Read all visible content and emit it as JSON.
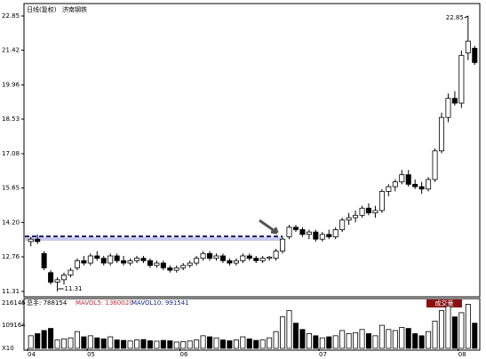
{
  "chart_data": {
    "type": "candlestick",
    "title": "日线(复权)",
    "subtitle": "济南钢铁",
    "up_color": "#ffffff",
    "down_color": "#000000",
    "categories": [
      "04",
      null,
      null,
      null,
      null,
      null,
      null,
      null,
      null,
      "05",
      null,
      null,
      null,
      null,
      null,
      null,
      null,
      null,
      null,
      null,
      null,
      null,
      null,
      "06",
      null,
      null,
      null,
      null,
      null,
      null,
      null,
      null,
      null,
      null,
      null,
      null,
      null,
      null,
      null,
      null,
      null,
      null,
      null,
      null,
      "07",
      null,
      null,
      null,
      null,
      null,
      null,
      null,
      null,
      null,
      null,
      null,
      null,
      null,
      null,
      null,
      null,
      null,
      null,
      null,
      null,
      "08",
      null,
      null
    ],
    "open": [
      13.4,
      13.5,
      12.9,
      12.1,
      11.7,
      11.8,
      12.0,
      12.3,
      12.6,
      12.5,
      12.8,
      12.7,
      12.5,
      12.8,
      12.6,
      12.5,
      12.6,
      12.7,
      12.6,
      12.4,
      12.5,
      12.3,
      12.2,
      12.3,
      12.4,
      12.5,
      12.7,
      12.9,
      12.7,
      12.8,
      12.6,
      12.5,
      12.6,
      12.8,
      12.7,
      12.6,
      12.7,
      12.7,
      13.0,
      13.6,
      14.0,
      13.9,
      13.7,
      13.8,
      13.5,
      13.7,
      13.6,
      13.9,
      14.3,
      14.4,
      14.5,
      14.8,
      14.6,
      14.7,
      15.5,
      15.7,
      15.9,
      16.2,
      15.8,
      15.7,
      15.6,
      16.0,
      17.2,
      18.6,
      19.4,
      19.2,
      21.3,
      21.5
    ],
    "high": [
      13.6,
      13.7,
      13.0,
      12.2,
      11.9,
      12.1,
      12.3,
      12.7,
      12.8,
      12.9,
      13.0,
      12.8,
      12.9,
      12.9,
      12.8,
      12.7,
      12.8,
      12.8,
      12.7,
      12.6,
      12.6,
      12.4,
      12.4,
      12.5,
      12.6,
      12.8,
      13.0,
      13.0,
      12.9,
      12.9,
      12.7,
      12.7,
      12.9,
      12.9,
      12.8,
      12.8,
      12.8,
      13.1,
      13.6,
      14.1,
      14.1,
      14.0,
      13.9,
      13.9,
      13.8,
      13.9,
      14.0,
      14.4,
      14.6,
      14.7,
      14.9,
      15.0,
      14.9,
      15.6,
      15.8,
      16.0,
      16.4,
      16.4,
      16.0,
      15.9,
      16.1,
      17.3,
      18.8,
      19.6,
      19.7,
      21.4,
      22.85,
      21.6
    ],
    "low": [
      13.2,
      13.3,
      12.2,
      11.6,
      11.31,
      11.6,
      11.9,
      12.2,
      12.4,
      12.4,
      12.6,
      12.4,
      12.4,
      12.5,
      12.4,
      12.4,
      12.5,
      12.5,
      12.3,
      12.3,
      12.2,
      12.1,
      12.1,
      12.2,
      12.3,
      12.4,
      12.6,
      12.6,
      12.6,
      12.5,
      12.4,
      12.4,
      12.5,
      12.6,
      12.5,
      12.5,
      12.6,
      12.6,
      12.9,
      13.5,
      13.8,
      13.6,
      13.5,
      13.4,
      13.4,
      13.5,
      13.5,
      13.8,
      14.1,
      14.2,
      14.4,
      14.5,
      14.4,
      14.6,
      15.3,
      15.5,
      15.8,
      15.7,
      15.6,
      15.4,
      15.5,
      15.9,
      17.1,
      18.4,
      19.1,
      19.0,
      21.0,
      20.8
    ],
    "close": [
      13.5,
      13.4,
      12.3,
      11.7,
      11.8,
      12.0,
      12.2,
      12.6,
      12.5,
      12.8,
      12.7,
      12.5,
      12.8,
      12.6,
      12.5,
      12.6,
      12.7,
      12.6,
      12.4,
      12.5,
      12.3,
      12.2,
      12.3,
      12.4,
      12.5,
      12.7,
      12.9,
      12.7,
      12.8,
      12.6,
      12.5,
      12.6,
      12.8,
      12.7,
      12.6,
      12.7,
      12.75,
      13.0,
      13.5,
      14.0,
      13.9,
      13.7,
      13.8,
      13.5,
      13.7,
      13.6,
      13.9,
      14.3,
      14.4,
      14.5,
      14.8,
      14.6,
      14.7,
      15.5,
      15.7,
      15.9,
      16.2,
      15.8,
      15.7,
      15.6,
      16.0,
      17.2,
      18.6,
      19.4,
      19.2,
      21.2,
      21.8,
      20.9
    ],
    "volume": [
      60000,
      70000,
      85000,
      95000,
      40000,
      45000,
      50000,
      80000,
      55000,
      60000,
      50000,
      45000,
      55000,
      40000,
      38000,
      35000,
      40000,
      42000,
      36000,
      34000,
      38000,
      36000,
      30000,
      32000,
      35000,
      40000,
      60000,
      55000,
      50000,
      40000,
      36000,
      40000,
      55000,
      45000,
      38000,
      40000,
      50000,
      80000,
      150000,
      180000,
      120000,
      90000,
      70000,
      60000,
      50000,
      55000,
      60000,
      85000,
      70000,
      75000,
      90000,
      70000,
      60000,
      110000,
      90000,
      85000,
      100000,
      95000,
      70000,
      60000,
      80000,
      130000,
      180000,
      200000,
      150000,
      170000,
      210000,
      120000
    ],
    "ylim": [
      11.31,
      22.85
    ],
    "yticks": [
      {
        "value": 11.31,
        "label": "11.31"
      },
      {
        "value": 12.76,
        "label": "12.76"
      },
      {
        "value": 14.2,
        "label": "14.20"
      },
      {
        "value": 15.65,
        "label": "15.65"
      },
      {
        "value": 17.08,
        "label": "17.08"
      },
      {
        "value": 18.53,
        "label": "18.53"
      },
      {
        "value": 19.96,
        "label": "19.96"
      },
      {
        "value": 21.42,
        "label": "21.42"
      },
      {
        "value": 22.85,
        "label": "22.85"
      }
    ],
    "volume_ylim": [
      0,
      216145
    ],
    "volume_yticks": [
      109164,
      216145
    ],
    "volume_unit": "X10",
    "volume_title": "成交量",
    "volume_header": [
      "总手: 788154",
      "MAVOL5: 1360020",
      "MAVOL10: 991541"
    ],
    "reference_line": 13.62,
    "annotations": [
      "22.85",
      "11.31"
    ]
  }
}
